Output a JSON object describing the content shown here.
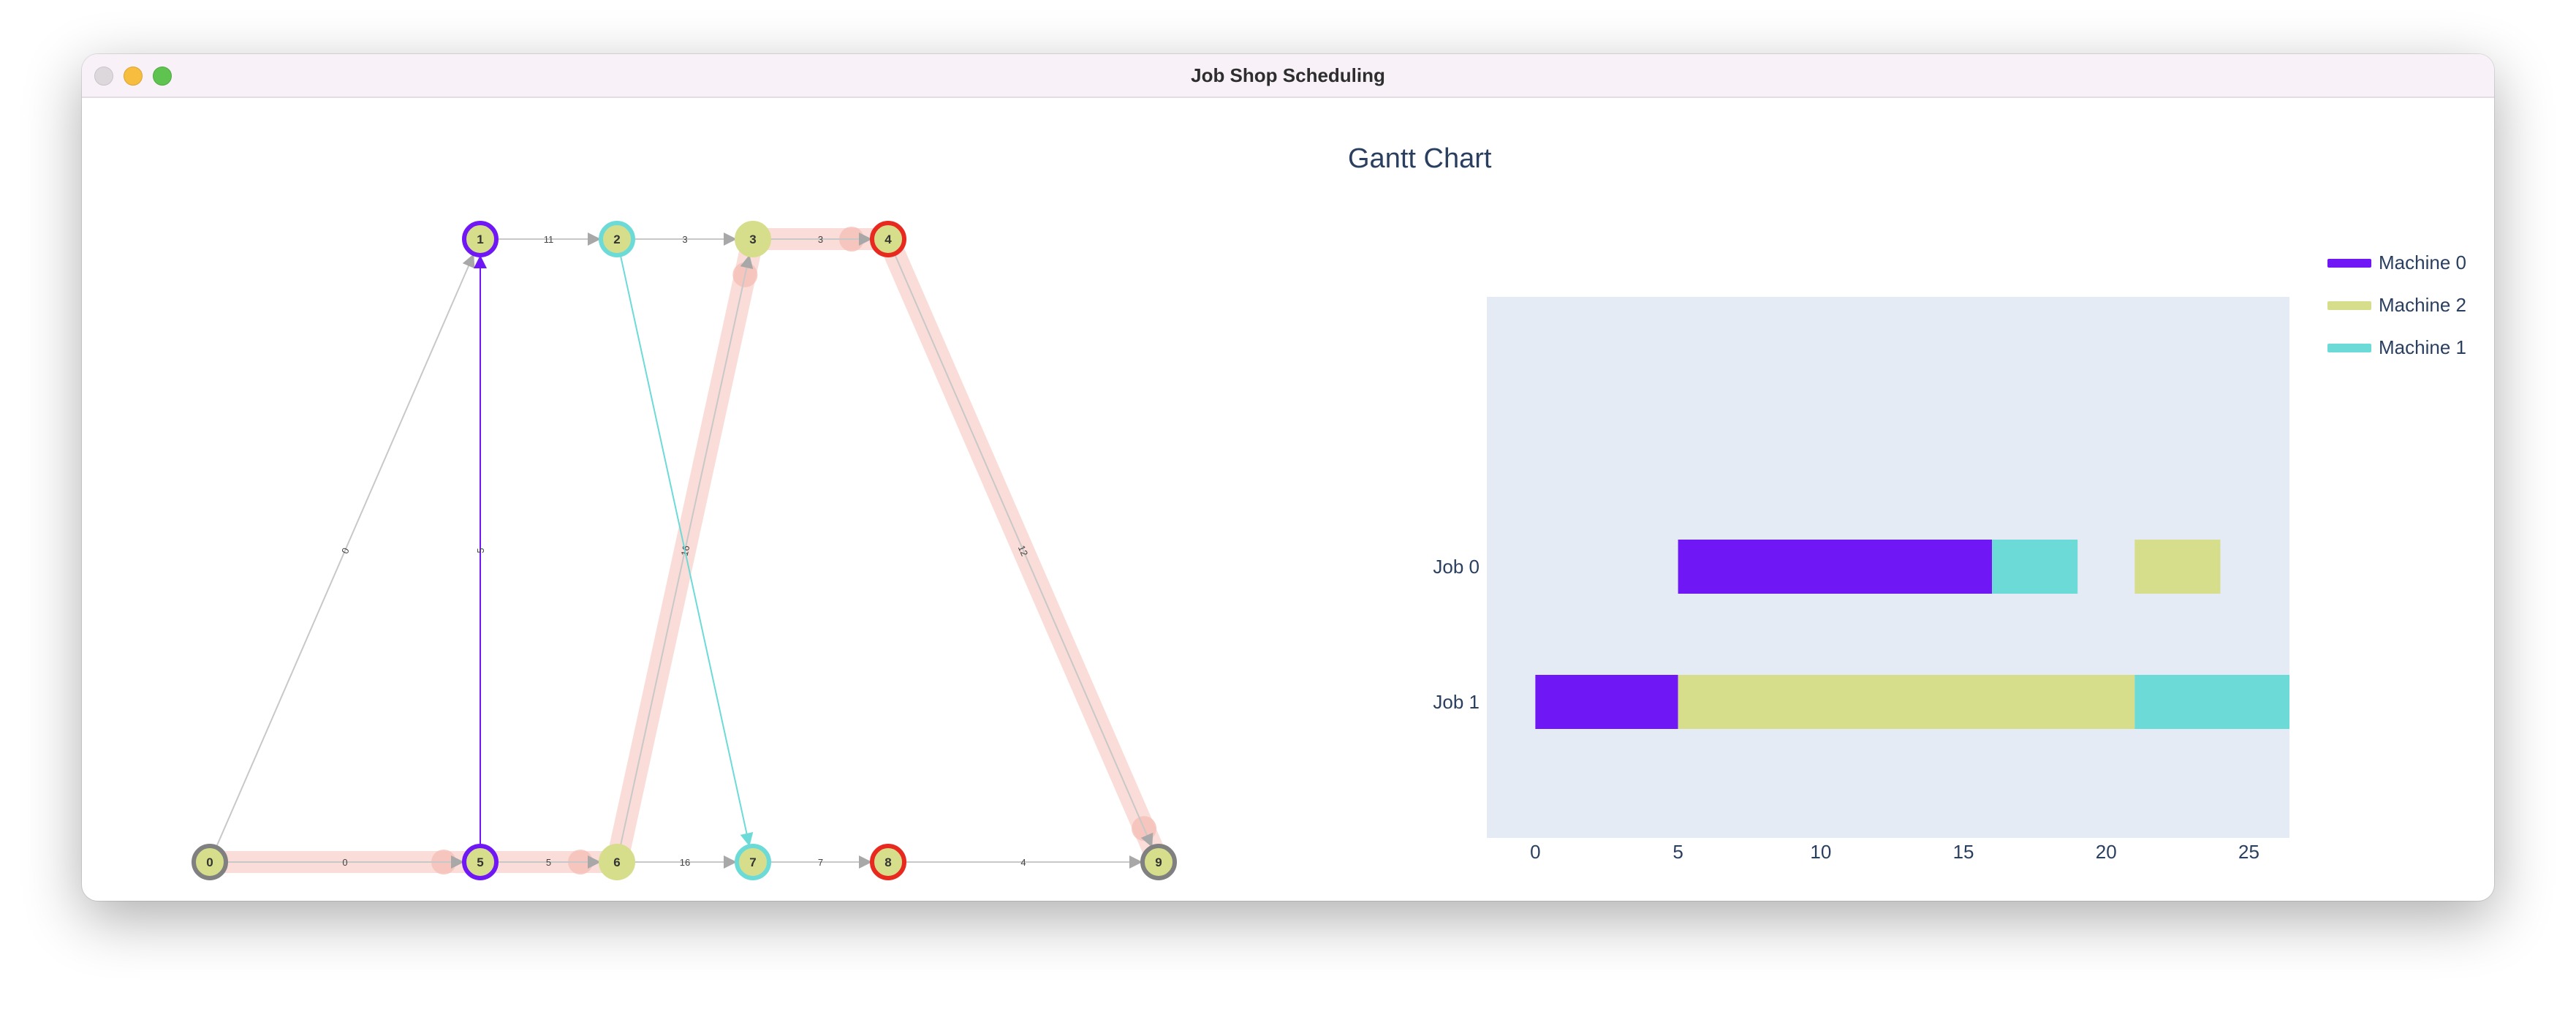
{
  "window": {
    "title": "Job Shop Scheduling"
  },
  "graph": {
    "nodes": [
      {
        "id": "0",
        "color": "#808080"
      },
      {
        "id": "1",
        "color": "#7017f5"
      },
      {
        "id": "2",
        "color": "#6cdbd8"
      },
      {
        "id": "3",
        "color": "#d6de8c"
      },
      {
        "id": "4",
        "color": "#e8291f"
      },
      {
        "id": "5",
        "color": "#7017f5"
      },
      {
        "id": "6",
        "color": "#d6de8c"
      },
      {
        "id": "7",
        "color": "#6cdbd8"
      },
      {
        "id": "8",
        "color": "#e8291f"
      },
      {
        "id": "9",
        "color": "#808080"
      }
    ],
    "edges": [
      {
        "from": "0",
        "to": "1",
        "label": "0",
        "color": "#c8c8c8"
      },
      {
        "from": "1",
        "to": "2",
        "label": "11",
        "color": "#c8c8c8"
      },
      {
        "from": "2",
        "to": "3",
        "label": "3",
        "color": "#c8c8c8"
      },
      {
        "from": "3",
        "to": "4",
        "label": "3",
        "color": "#c8c8c8"
      },
      {
        "from": "4",
        "to": "9",
        "label": "12",
        "color": "#c8c8c8"
      },
      {
        "from": "0",
        "to": "5",
        "label": "0",
        "color": "#c8c8c8"
      },
      {
        "from": "5",
        "to": "6",
        "label": "5",
        "color": "#c8c8c8"
      },
      {
        "from": "6",
        "to": "7",
        "label": "16",
        "color": "#c8c8c8"
      },
      {
        "from": "7",
        "to": "8",
        "label": "7",
        "color": "#c8c8c8"
      },
      {
        "from": "8",
        "to": "9",
        "label": "4",
        "color": "#c8c8c8"
      },
      {
        "from": "5",
        "to": "1",
        "label": "5",
        "color": "#7017f5"
      },
      {
        "from": "6",
        "to": "3",
        "label": "16",
        "color": "#c8c8c8"
      },
      {
        "from": "2",
        "to": "7",
        "label": "",
        "color": "#6cdbd8"
      }
    ],
    "critical_path": [
      "0",
      "5",
      "6",
      "3",
      "4",
      "9"
    ],
    "critical_path_color": "#f5c1b8"
  },
  "gantt": {
    "title": "Gantt Chart",
    "legend": [
      {
        "name": "Machine 0",
        "color": "#7017f5"
      },
      {
        "name": "Machine 2",
        "color": "#d6de8c"
      },
      {
        "name": "Machine 1",
        "color": "#6cdbd8"
      }
    ],
    "plot_bg": "#e5ebf5"
  },
  "chart_data": {
    "type": "bar",
    "title": "Gantt Chart",
    "categories": [
      "Job 0",
      "Job 1"
    ],
    "xticks": [
      "0",
      "5",
      "10",
      "15",
      "20",
      "25"
    ],
    "xlim": [
      -1.7,
      29.7
    ],
    "series": [
      {
        "name": "Machine 0",
        "color": "#7017f5",
        "tasks": [
          {
            "job": "Job 0",
            "start": 5,
            "end": 16
          },
          {
            "job": "Job 1",
            "start": 0,
            "end": 5
          }
        ]
      },
      {
        "name": "Machine 2",
        "color": "#d6de8c",
        "tasks": [
          {
            "job": "Job 0",
            "start": 21,
            "end": 24
          },
          {
            "job": "Job 1",
            "start": 5,
            "end": 21
          }
        ]
      },
      {
        "name": "Machine 1",
        "color": "#6cdbd8",
        "tasks": [
          {
            "job": "Job 0",
            "start": 16,
            "end": 19
          },
          {
            "job": "Job 1",
            "start": 21,
            "end": 28
          }
        ]
      }
    ],
    "legend_position": "top-right",
    "grid": false
  }
}
